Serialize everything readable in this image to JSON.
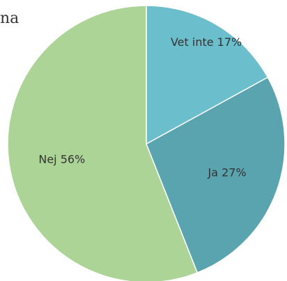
{
  "chart_data": {
    "type": "pie",
    "title": "na",
    "categories": [
      "Vet inte",
      "Ja",
      "Nej"
    ],
    "values": [
      17,
      27,
      56
    ],
    "value_labels": [
      "Vet inte 17%",
      "Ja 27%",
      "Nej 56%"
    ],
    "colors": [
      "#6bbfcc",
      "#5aa4b0",
      "#acd496"
    ]
  }
}
